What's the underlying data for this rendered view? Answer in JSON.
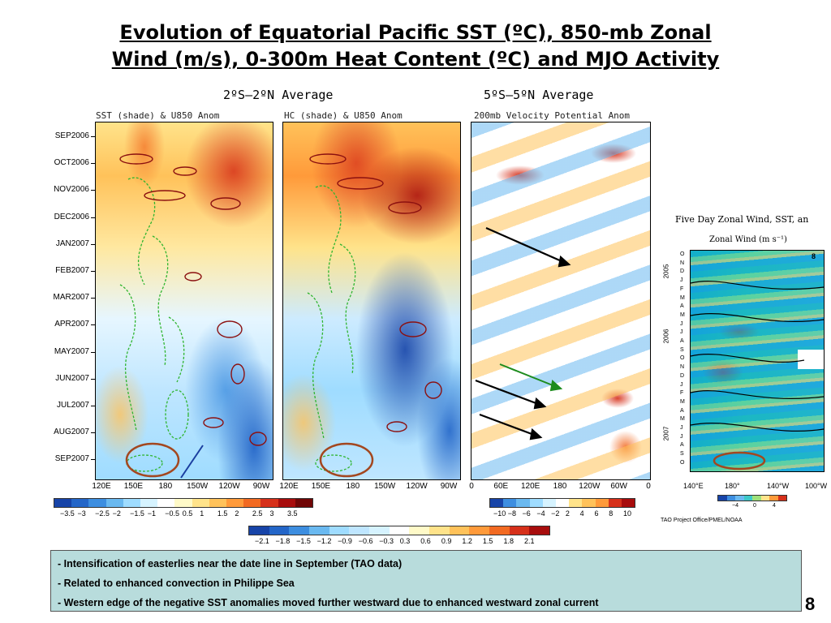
{
  "title": {
    "line1": "Evolution of Equatorial Pacific SST (ºC), 850-mb Zonal",
    "line2": "Wind (m/s), 0-300m Heat Content (ºC) and MJO Activity"
  },
  "headers": {
    "left_avg": "2ºS–2ºN  Average",
    "right_avg": "5ºS–5ºN  Average"
  },
  "panels": {
    "sst": {
      "title": "SST (shade) & U850 Anom"
    },
    "hc": {
      "title": "HC (shade) & U850 Anom"
    },
    "vp": {
      "title": "200mb Velocity Potential Anom"
    }
  },
  "y_labels": [
    "SEP2006",
    "OCT2006",
    "NOV2006",
    "DEC2006",
    "JAN2007",
    "FEB2007",
    "MAR2007",
    "APR2007",
    "MAY2007",
    "JUN2007",
    "JUL2007",
    "AUG2007",
    "SEP2007"
  ],
  "x_labels": {
    "sst": [
      "120E",
      "150E",
      "180",
      "150W",
      "120W",
      "90W"
    ],
    "hc": [
      "120E",
      "150E",
      "180",
      "150W",
      "120W",
      "90W"
    ],
    "vp": [
      "0",
      "60E",
      "120E",
      "180",
      "120W",
      "60W",
      "0"
    ]
  },
  "colorbars": {
    "sst_labels": [
      "−3.5",
      "−3",
      "−2.5",
      "−2",
      "−1.5",
      "−1",
      "−0.5",
      "0.5",
      "1",
      "1.5",
      "2",
      "2.5",
      "3",
      "3.5"
    ],
    "vp_labels": [
      "−10",
      "−8",
      "−6",
      "−4",
      "−2",
      "2",
      "4",
      "6",
      "8",
      "10"
    ],
    "hc_labels": [
      "−2.1",
      "−1.8",
      "−1.5",
      "−1.2",
      "−0.9",
      "−0.6",
      "−0.3",
      "0.3",
      "0.6",
      "0.9",
      "1.2",
      "1.5",
      "1.8",
      "2.1"
    ]
  },
  "tao": {
    "title": "Five Day Zonal Wind, SST, an",
    "subtitle": "Zonal Wind (m s⁻¹)",
    "years": [
      "2005",
      "2006",
      "2007"
    ],
    "months": [
      "O",
      "N",
      "D",
      "J",
      "F",
      "M",
      "A",
      "M",
      "J",
      "J",
      "A",
      "S",
      "O",
      "N",
      "D",
      "J",
      "F",
      "M",
      "A",
      "M",
      "J",
      "J",
      "A",
      "S",
      "O"
    ],
    "x_labels": [
      "140°E",
      "180°",
      "140°W",
      "100°W"
    ],
    "cbar_labels": [
      "−4",
      "0",
      "4"
    ],
    "credit": "TAO Project Office/PMEL/NOAA",
    "panel_number": "8"
  },
  "notes": [
    "Intensification of easterlies near the date line in September (TAO data)",
    "Related to enhanced convection in Philippe Sea",
    "Western edge of the negative SST anomalies moved further westward due to enhanced westward zonal current"
  ],
  "page_number": "8",
  "colors": {
    "warm_palette": [
      "#fffac8",
      "#ffe38a",
      "#ffc25a",
      "#ff9a3a",
      "#f26a22",
      "#d6301a",
      "#a80d0d"
    ],
    "cool_palette": [
      "#d6f3ff",
      "#9fdcff",
      "#6ab9f0",
      "#3d8ee0",
      "#2466c8",
      "#1744a8"
    ],
    "contour_pos": "#8b1010",
    "contour_neg": "#2fb52f",
    "notes_bg": "#b8dcdc"
  }
}
